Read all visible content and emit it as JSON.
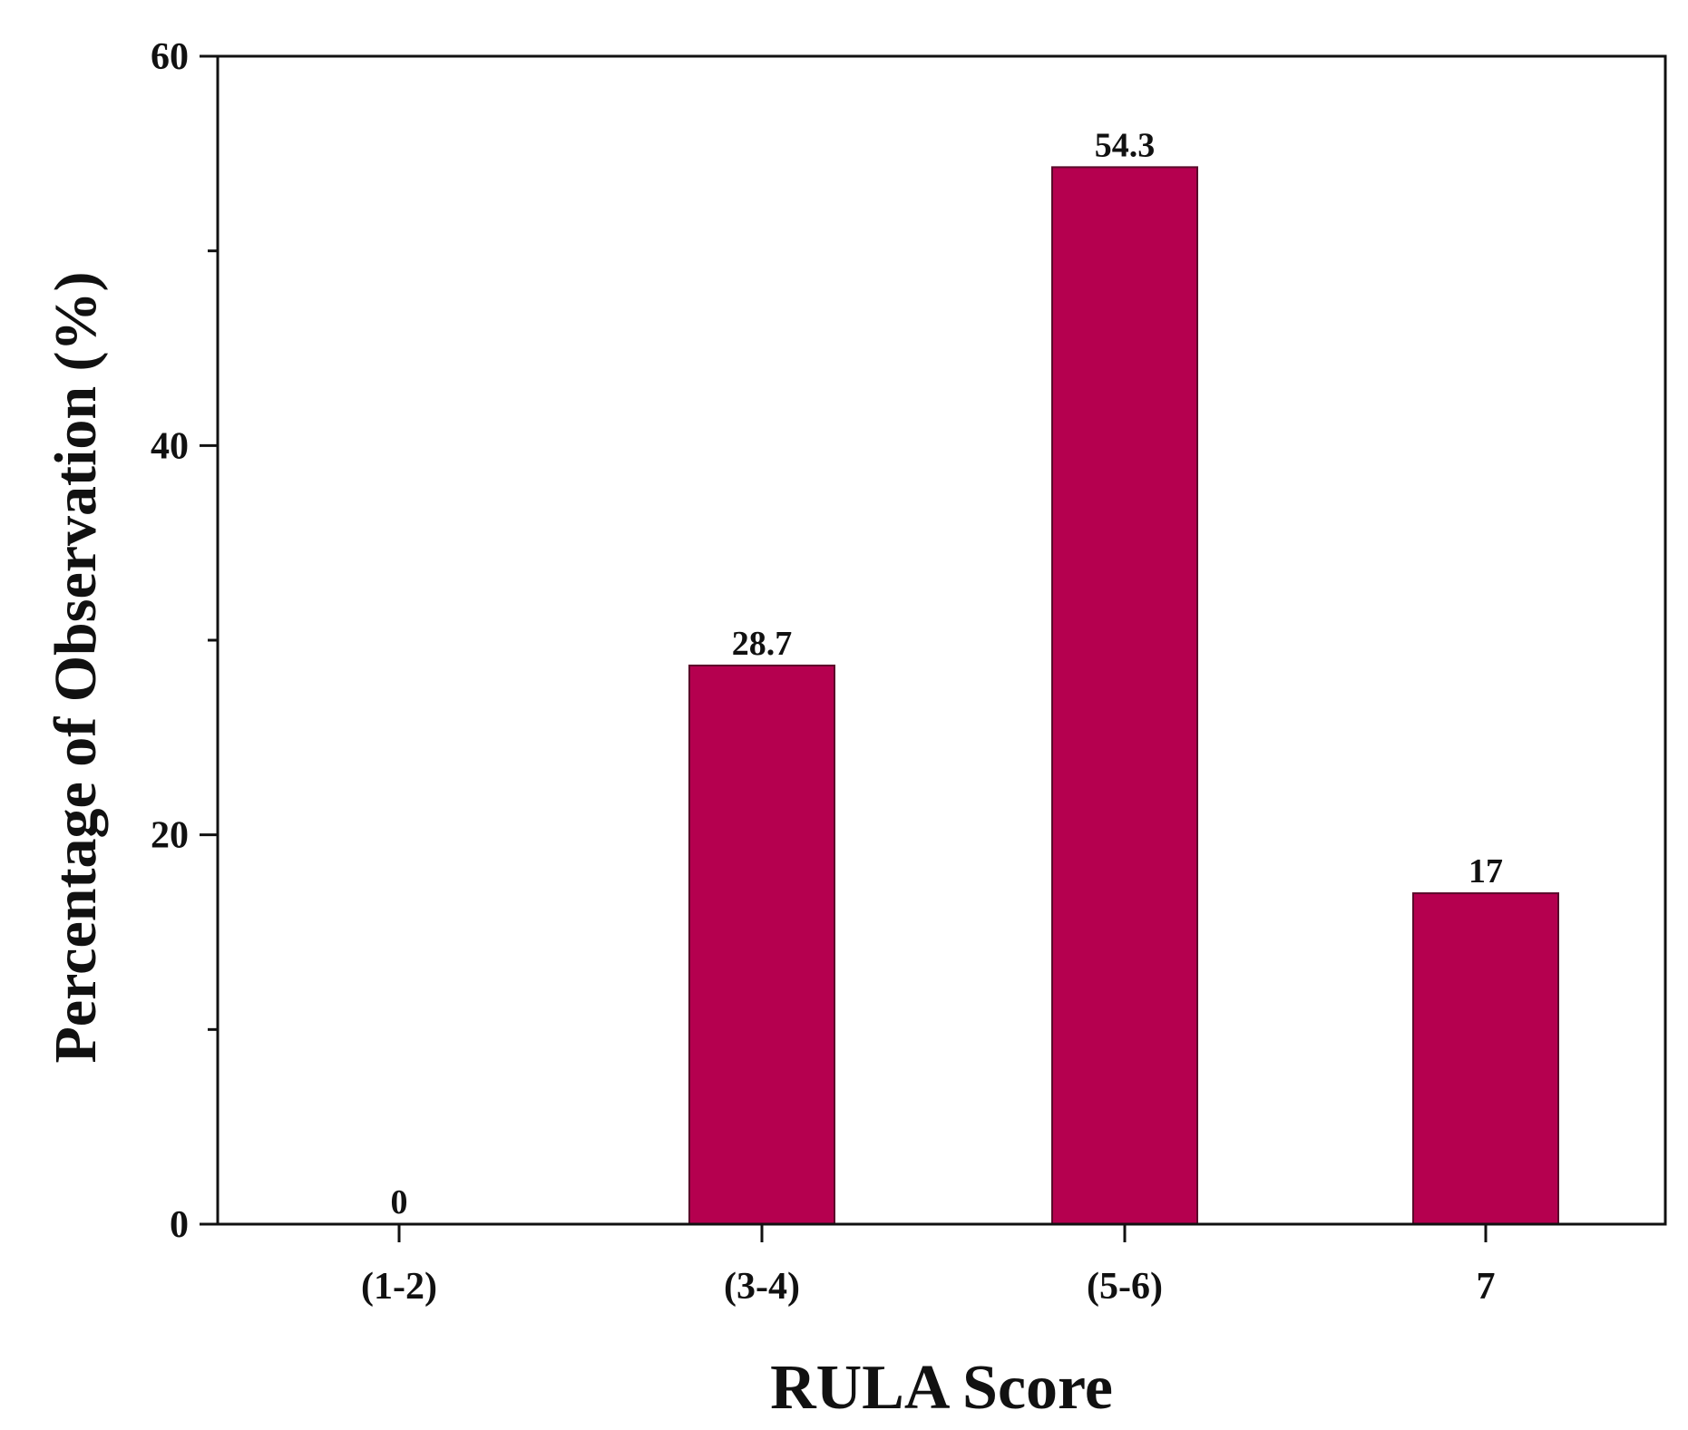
{
  "chart_data": {
    "type": "bar",
    "title": "",
    "xlabel": "RULA Score",
    "ylabel": "Percentage of Observation (%)",
    "categories": [
      "(1-2)",
      "(3-4)",
      "(5-6)",
      "7"
    ],
    "values": [
      0,
      28.7,
      54.3,
      17
    ],
    "data_labels": [
      "0",
      "28.7",
      "54.3",
      "17"
    ],
    "ylim": [
      0,
      60
    ],
    "y_ticks": [
      0,
      20,
      40,
      60
    ],
    "y_tick_labels": [
      "0",
      "20",
      "40",
      "60"
    ],
    "y_minor_ticks": [
      10,
      30,
      50
    ],
    "grid": false,
    "legend": "none",
    "bar_color": "#B5004F",
    "axis_color": "#111111"
  }
}
